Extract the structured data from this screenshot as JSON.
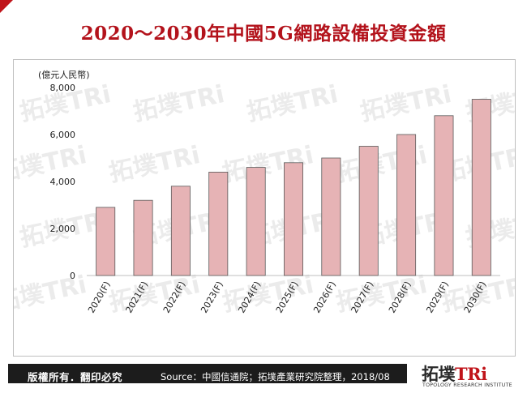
{
  "title": "2020～2030年中國5G網路設備投資金額",
  "copyright": "版權所有．翻印必究",
  "source": "Source：中國信通院；拓墣產業研究院整理，2018/08",
  "logo": {
    "main_a": "拓墣",
    "main_b": "TRi",
    "sub": "TOPOLOGY RESEARCH INSTITUTE"
  },
  "watermark": "拓墣TRi",
  "colors": {
    "title": "#b3121b",
    "bar_fill": "#e6b3b5",
    "bar_stroke": "#5a5a5a",
    "corner": "#c0141a"
  },
  "chart_data": {
    "type": "bar",
    "ylabel": "(億元人民幣)",
    "xlabel": "",
    "ylim": [
      0,
      8000
    ],
    "yticks": [
      0,
      2000,
      4000,
      6000,
      8000
    ],
    "ytick_labels": [
      "0",
      "2,000",
      "4,000",
      "6,000",
      "8,000"
    ],
    "grid": false,
    "categories": [
      "2020(F)",
      "2021(F)",
      "2022(F)",
      "2023(F)",
      "2024(F)",
      "2025(F)",
      "2026(F)",
      "2027(F)",
      "2028(F)",
      "2029(F)",
      "2030(F)"
    ],
    "values": [
      2900,
      3200,
      3800,
      4400,
      4600,
      4800,
      5000,
      5500,
      6000,
      6800,
      7500
    ]
  }
}
